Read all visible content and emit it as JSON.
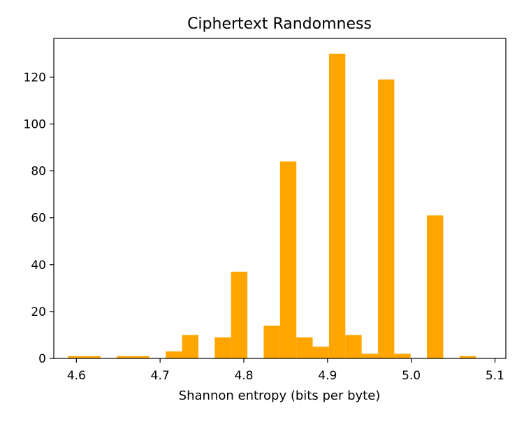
{
  "chart_data": {
    "type": "bar",
    "title": "Ciphertext Randomness",
    "xlabel": "Shannon entropy (bits per byte)",
    "ylabel": "",
    "xlim": [
      4.573,
      5.113
    ],
    "ylim": [
      0,
      136.5
    ],
    "bin_width": 0.0195,
    "bins": [
      {
        "x": 4.5995,
        "y": 1
      },
      {
        "x": 4.619,
        "y": 1
      },
      {
        "x": 4.658,
        "y": 1
      },
      {
        "x": 4.6775,
        "y": 1
      },
      {
        "x": 4.7165,
        "y": 3
      },
      {
        "x": 4.736,
        "y": 10
      },
      {
        "x": 4.775,
        "y": 9
      },
      {
        "x": 4.7945,
        "y": 37
      },
      {
        "x": 4.8335,
        "y": 14
      },
      {
        "x": 4.853,
        "y": 84
      },
      {
        "x": 4.8725,
        "y": 9
      },
      {
        "x": 4.892,
        "y": 5
      },
      {
        "x": 4.9115,
        "y": 130
      },
      {
        "x": 4.931,
        "y": 10
      },
      {
        "x": 4.9505,
        "y": 2
      },
      {
        "x": 4.97,
        "y": 119
      },
      {
        "x": 4.9895,
        "y": 2
      },
      {
        "x": 5.0285,
        "y": 61
      },
      {
        "x": 5.0675,
        "y": 1
      }
    ],
    "x_ticks": [
      {
        "value": 4.6,
        "label": "4.6"
      },
      {
        "value": 4.7,
        "label": "4.7"
      },
      {
        "value": 4.8,
        "label": "4.8"
      },
      {
        "value": 4.9,
        "label": "4.9"
      },
      {
        "value": 5.0,
        "label": "5.0"
      },
      {
        "value": 5.1,
        "label": "5.1"
      }
    ],
    "y_ticks": [
      {
        "value": 0,
        "label": "0"
      },
      {
        "value": 20,
        "label": "20"
      },
      {
        "value": 40,
        "label": "40"
      },
      {
        "value": 60,
        "label": "60"
      },
      {
        "value": 80,
        "label": "80"
      },
      {
        "value": 100,
        "label": "100"
      },
      {
        "value": 120,
        "label": "120"
      }
    ],
    "bar_color": "#ffa500",
    "grid": false,
    "legend": "none"
  }
}
